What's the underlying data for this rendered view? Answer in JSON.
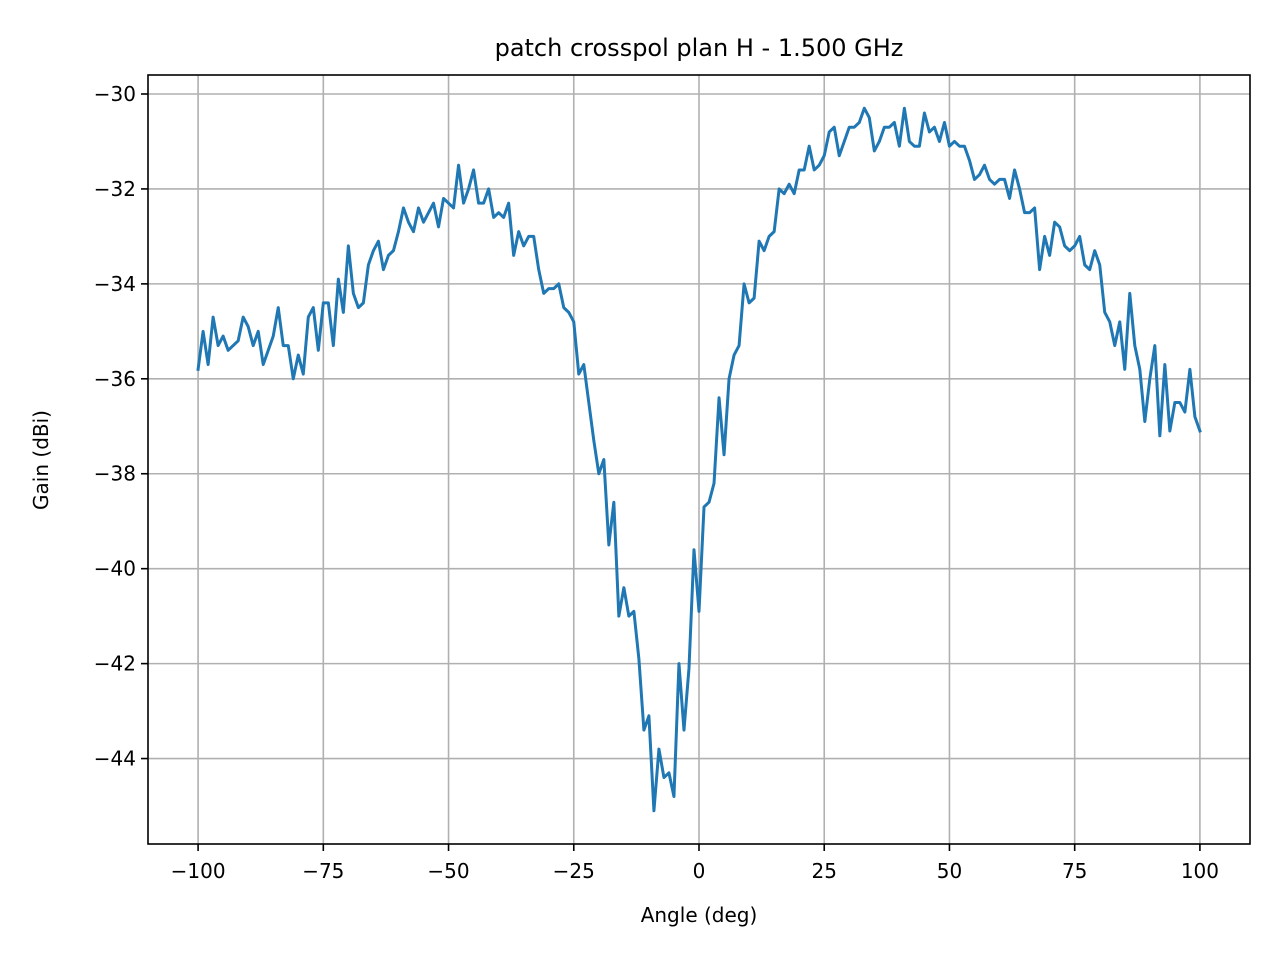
{
  "chart_data": {
    "type": "line",
    "title": "patch crosspol plan H - 1.500 GHz",
    "xlabel": "Angle (deg)",
    "ylabel": "Gain (dBi)",
    "xlim": [
      -110,
      110
    ],
    "ylim": [
      -45.8,
      -29.6
    ],
    "xticks": [
      -100,
      -75,
      -50,
      -25,
      0,
      25,
      50,
      75,
      100
    ],
    "yticks": [
      -44,
      -42,
      -40,
      -38,
      -36,
      -34,
      -32,
      -30
    ],
    "grid": true,
    "line_color": "#1f77b4",
    "series": [
      {
        "x": [
          -100,
          -99,
          -98,
          -97,
          -96,
          -95,
          -94,
          -93,
          -92,
          -91,
          -90,
          -89,
          -88,
          -87,
          -86,
          -85,
          -84,
          -83,
          -82,
          -81,
          -80,
          -79,
          -78,
          -77,
          -76,
          -75,
          -74,
          -73,
          -72,
          -71,
          -70,
          -69,
          -68,
          -67,
          -66,
          -65,
          -64,
          -63,
          -62,
          -61,
          -60,
          -59,
          -58,
          -57,
          -56,
          -55,
          -54,
          -53,
          -52,
          -51,
          -50,
          -49,
          -48,
          -47,
          -46,
          -45,
          -44,
          -43,
          -42,
          -41,
          -40,
          -39,
          -38,
          -37,
          -36,
          -35,
          -34,
          -33,
          -32,
          -31,
          -30,
          -29,
          -28,
          -27,
          -26,
          -25,
          -24,
          -23,
          -22,
          -21,
          -20,
          -19,
          -18,
          -17,
          -16,
          -15,
          -14,
          -13,
          -12,
          -11,
          -10,
          -9,
          -8,
          -7,
          -6,
          -5,
          -4,
          -3,
          -2,
          -1,
          0,
          1,
          2,
          3,
          4,
          5,
          6,
          7,
          8,
          9,
          10,
          11,
          12,
          13,
          14,
          15,
          16,
          17,
          18,
          19,
          20,
          21,
          22,
          23,
          24,
          25,
          26,
          27,
          28,
          29,
          30,
          31,
          32,
          33,
          34,
          35,
          36,
          37,
          38,
          39,
          40,
          41,
          42,
          43,
          44,
          45,
          46,
          47,
          48,
          49,
          50,
          51,
          52,
          53,
          54,
          55,
          56,
          57,
          58,
          59,
          60,
          61,
          62,
          63,
          64,
          65,
          66,
          67,
          68,
          69,
          70,
          71,
          72,
          73,
          74,
          75,
          76,
          77,
          78,
          79,
          80,
          81,
          82,
          83,
          84,
          85,
          86,
          87,
          88,
          89,
          90,
          91,
          92,
          93,
          94,
          95,
          96,
          97,
          98,
          99,
          100
        ],
        "y": [
          -35.8,
          -35.0,
          -35.7,
          -34.7,
          -35.3,
          -35.1,
          -35.4,
          -35.3,
          -35.2,
          -34.7,
          -34.9,
          -35.3,
          -35.0,
          -35.7,
          -35.4,
          -35.1,
          -34.5,
          -35.3,
          -35.3,
          -36.0,
          -35.5,
          -35.9,
          -34.7,
          -34.5,
          -35.4,
          -34.4,
          -34.4,
          -35.3,
          -33.9,
          -34.6,
          -33.2,
          -34.2,
          -34.5,
          -34.4,
          -33.6,
          -33.3,
          -33.1,
          -33.7,
          -33.4,
          -33.3,
          -32.9,
          -32.4,
          -32.7,
          -32.9,
          -32.4,
          -32.7,
          -32.5,
          -32.3,
          -32.8,
          -32.2,
          -32.3,
          -32.4,
          -31.5,
          -32.3,
          -32.0,
          -31.6,
          -32.3,
          -32.3,
          -32.0,
          -32.6,
          -32.5,
          -32.6,
          -32.3,
          -33.4,
          -32.9,
          -33.2,
          -33.0,
          -33.0,
          -33.7,
          -34.2,
          -34.1,
          -34.1,
          -34.0,
          -34.5,
          -34.6,
          -34.8,
          -35.9,
          -35.7,
          -36.5,
          -37.3,
          -38.0,
          -37.7,
          -39.5,
          -38.6,
          -41.0,
          -40.4,
          -41.0,
          -40.9,
          -41.9,
          -43.4,
          -43.1,
          -45.1,
          -43.8,
          -44.4,
          -44.3,
          -44.8,
          -42.0,
          -43.4,
          -42.1,
          -39.6,
          -40.9,
          -38.7,
          -38.6,
          -38.2,
          -36.4,
          -37.6,
          -36.0,
          -35.5,
          -35.3,
          -34.0,
          -34.4,
          -34.3,
          -33.1,
          -33.3,
          -33.0,
          -32.9,
          -32.0,
          -32.1,
          -31.9,
          -32.1,
          -31.6,
          -31.6,
          -31.1,
          -31.6,
          -31.5,
          -31.3,
          -30.8,
          -30.7,
          -31.3,
          -31.0,
          -30.7,
          -30.7,
          -30.6,
          -30.3,
          -30.5,
          -31.2,
          -31.0,
          -30.7,
          -30.7,
          -30.6,
          -31.1,
          -30.3,
          -31.0,
          -31.1,
          -31.1,
          -30.4,
          -30.8,
          -30.7,
          -31.0,
          -30.6,
          -31.1,
          -31.0,
          -31.1,
          -31.1,
          -31.4,
          -31.8,
          -31.7,
          -31.5,
          -31.8,
          -31.9,
          -31.8,
          -31.8,
          -32.2,
          -31.6,
          -32.0,
          -32.5,
          -32.5,
          -32.4,
          -33.7,
          -33.0,
          -33.4,
          -32.7,
          -32.8,
          -33.2,
          -33.3,
          -33.2,
          -33.0,
          -33.6,
          -33.7,
          -33.3,
          -33.6,
          -34.6,
          -34.8,
          -35.3,
          -34.8,
          -35.8,
          -34.2,
          -35.3,
          -35.8,
          -36.9,
          -36.0,
          -35.3,
          -37.2,
          -35.7,
          -37.1,
          -36.5,
          -36.5,
          -36.7,
          -35.8,
          -36.8,
          -37.1
        ]
      }
    ]
  }
}
